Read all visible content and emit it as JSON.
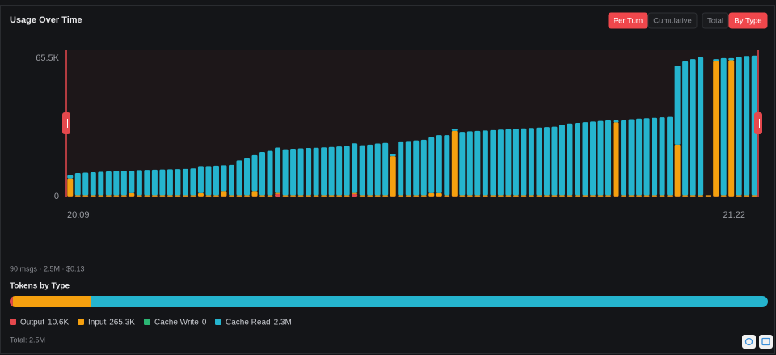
{
  "header": {
    "title": "Usage Over Time",
    "view_buttons": [
      "Per Turn",
      "Cumulative"
    ],
    "view_active": 0,
    "mode_buttons": [
      "Total",
      "By Type"
    ],
    "mode_active": 1
  },
  "chart_data": {
    "type": "bar",
    "stacked": true,
    "categories": [
      "20:09",
      null,
      null,
      null,
      null,
      null,
      null,
      null,
      null,
      null,
      null,
      null,
      null,
      null,
      null,
      null,
      null,
      null,
      null,
      null,
      null,
      null,
      null,
      null,
      null,
      null,
      null,
      null,
      null,
      null,
      null,
      null,
      null,
      null,
      null,
      null,
      null,
      null,
      null,
      null,
      null,
      null,
      null,
      null,
      null,
      null,
      null,
      null,
      null,
      null,
      null,
      null,
      null,
      null,
      null,
      null,
      null,
      null,
      null,
      null,
      null,
      null,
      null,
      null,
      null,
      null,
      null,
      null,
      null,
      null,
      null,
      null,
      null,
      null,
      null,
      null,
      null,
      null,
      null,
      null,
      null,
      null,
      null,
      null,
      null,
      null,
      null,
      null,
      null,
      "21:22"
    ],
    "ylim": [
      0,
      69000
    ],
    "yticks": [
      0,
      {
        "value": 65500,
        "label": "65.5K"
      }
    ],
    "series": [
      {
        "name": "Output",
        "color": "#e5484d",
        "values": [
          100,
          100,
          100,
          100,
          100,
          100,
          100,
          100,
          100,
          100,
          100,
          100,
          100,
          100,
          100,
          100,
          100,
          100,
          100,
          100,
          100,
          100,
          100,
          100,
          100,
          100,
          100,
          1200,
          100,
          100,
          100,
          100,
          100,
          100,
          100,
          100,
          100,
          1200,
          100,
          100,
          100,
          100,
          100,
          100,
          100,
          100,
          100,
          100,
          100,
          100,
          100,
          100,
          100,
          100,
          100,
          100,
          100,
          100,
          100,
          100,
          100,
          100,
          100,
          100,
          100,
          100,
          100,
          100,
          100,
          100,
          100,
          100,
          100,
          100,
          100,
          100,
          100,
          100,
          100,
          100,
          100,
          100,
          100,
          100,
          100,
          100,
          100,
          100,
          100,
          100
        ]
      },
      {
        "name": "Input",
        "color": "#f5a00f",
        "values": [
          8500,
          500,
          500,
          500,
          500,
          500,
          500,
          500,
          1500,
          500,
          500,
          500,
          500,
          500,
          500,
          500,
          500,
          1500,
          500,
          500,
          2500,
          500,
          500,
          500,
          2500,
          500,
          500,
          500,
          500,
          500,
          500,
          500,
          500,
          500,
          500,
          500,
          500,
          500,
          500,
          500,
          500,
          500,
          19000,
          500,
          500,
          500,
          500,
          1500,
          1500,
          500,
          31000,
          500,
          500,
          500,
          500,
          500,
          500,
          500,
          500,
          500,
          500,
          500,
          500,
          500,
          500,
          500,
          500,
          500,
          500,
          500,
          500,
          35000,
          500,
          500,
          500,
          500,
          500,
          500,
          500,
          24500,
          500,
          500,
          500,
          500,
          64000,
          500,
          64500,
          500,
          500,
          500
        ]
      },
      {
        "name": "Cache Read",
        "color": "#25b4ce",
        "values": [
          1500,
          10500,
          10700,
          10900,
          11100,
          11300,
          11500,
          11600,
          10500,
          11900,
          12000,
          12100,
          12200,
          12300,
          12400,
          12500,
          12700,
          12800,
          13800,
          14000,
          12200,
          14400,
          16500,
          17500,
          17000,
          20500,
          21000,
          21500,
          21800,
          22000,
          22200,
          22400,
          22500,
          22700,
          22900,
          23100,
          23300,
          23500,
          23700,
          24000,
          24500,
          24800,
          1000,
          25500,
          25700,
          26000,
          26300,
          26500,
          27500,
          28500,
          1000,
          30000,
          30300,
          30500,
          30700,
          30900,
          31100,
          31300,
          31500,
          31700,
          31900,
          32100,
          32300,
          32500,
          33500,
          34000,
          34300,
          34600,
          34900,
          35200,
          35500,
          1000,
          35500,
          36000,
          36300,
          36500,
          36700,
          36900,
          37100,
          37500,
          63500,
          64500,
          65500,
          0,
          1000,
          65000,
          1000,
          65500,
          66000,
          66200
        ]
      }
    ]
  },
  "summary": "90 msgs · 2.5M · $0.13",
  "tokens_by_type": {
    "title": "Tokens by Type",
    "items": [
      {
        "name": "Output",
        "value": 10600,
        "value_label": "10.6K",
        "color": "#e5484d"
      },
      {
        "name": "Input",
        "value": 265300,
        "value_label": "265.3K",
        "color": "#f5a00f"
      },
      {
        "name": "Cache Write",
        "value": 0,
        "value_label": "0",
        "color": "#2bb673"
      },
      {
        "name": "Cache Read",
        "value": 2300000,
        "value_label": "2.3M",
        "color": "#25b4ce"
      }
    ],
    "total": "Total: 2.5M"
  }
}
